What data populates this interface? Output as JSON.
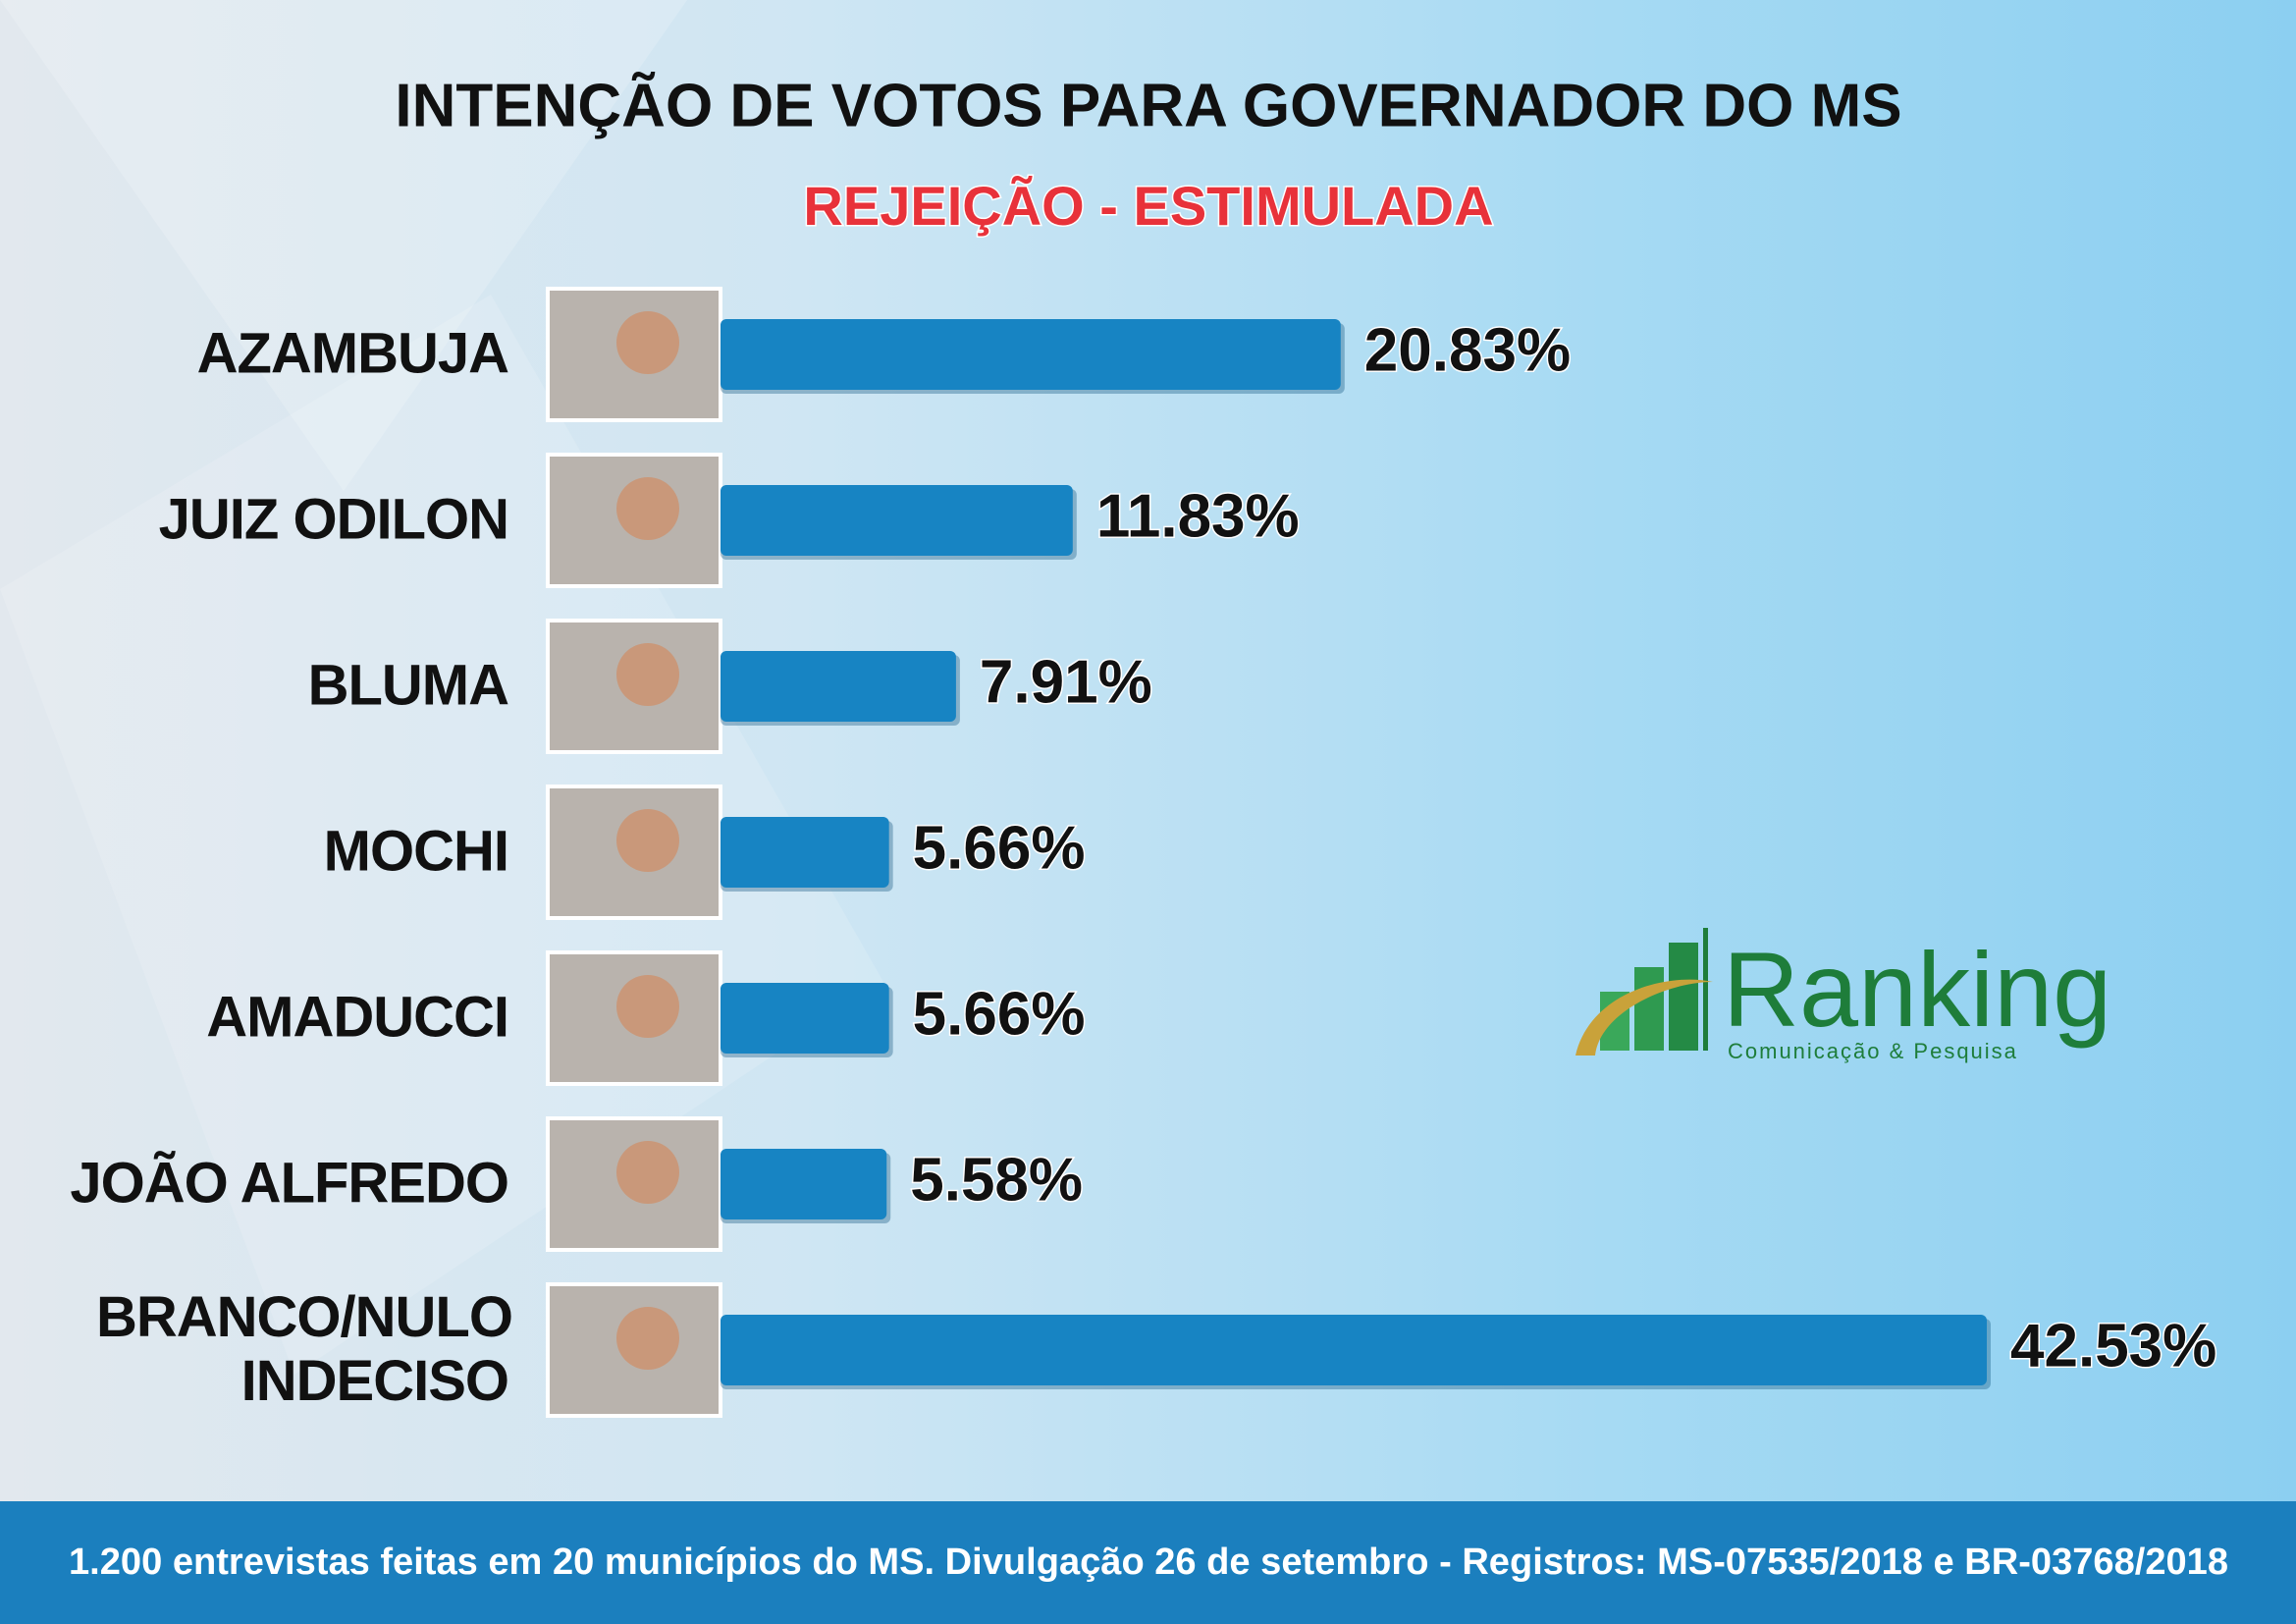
{
  "chart_data": {
    "type": "bar",
    "orientation": "horizontal",
    "title": "INTENÇÃO DE VOTOS PARA GOVERNADOR DO MS",
    "subtitle": "REJEIÇÃO - ESTIMULADA",
    "categories": [
      "AZAMBUJA",
      "JUIZ ODILON",
      "BLUMA",
      "MOCHI",
      "AMADUCCI",
      "JOÃO ALFREDO",
      "BRANCO/NULO INDECISO"
    ],
    "values": [
      20.83,
      11.83,
      7.91,
      5.66,
      5.66,
      5.58,
      42.53
    ],
    "value_labels": [
      "20.83%",
      "11.83%",
      "7.91%",
      "5.66%",
      "5.66%",
      "5.58%",
      "42.53%"
    ],
    "color": "#1784c3"
  },
  "logo": {
    "name": "Ranking",
    "tagline": "Comunicação & Pesquisa"
  },
  "footer": "1.200 entrevistas feitas em 20 municípios do MS. Divulgação 26 de setembro - Registros: MS-07535/2018 e BR-03768/2018"
}
